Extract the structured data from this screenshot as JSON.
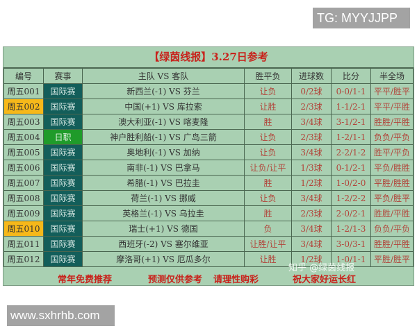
{
  "watermarks": {
    "tg": "TG: MYYJJPP",
    "site": "www.sxhrhb.com",
    "zhihu": "知乎 @绿茵线报"
  },
  "title": "【绿茵线报】3.27日参考",
  "headers": [
    "编号",
    "赛事",
    "主队 VS 客队",
    "胜平负",
    "进球数",
    "比分",
    "半全场"
  ],
  "colors": {
    "highlight": "#f6b81a",
    "league": "#135e5a",
    "league_alt": "#1f9b2a",
    "accent": "#c8231c"
  },
  "rows": [
    {
      "id": "周五001",
      "league": "国际赛",
      "teams": "新西兰(-1) VS 芬兰",
      "result": "让负",
      "goals": "0/2球",
      "score": "0-0/1-1",
      "htft": "平平/胜平",
      "highlight": false
    },
    {
      "id": "周五002",
      "league": "国际赛",
      "teams": "中国(+1) VS 库拉索",
      "result": "让胜",
      "goals": "2/3球",
      "score": "1-1/2-1",
      "htft": "平平/平胜",
      "highlight": true
    },
    {
      "id": "周五003",
      "league": "国际赛",
      "teams": "澳大利亚(-1) VS 喀麦隆",
      "result": "胜",
      "goals": "3/4球",
      "score": "3-1/2-1",
      "htft": "胜胜/平胜",
      "highlight": false
    },
    {
      "id": "周五004",
      "league": "日职",
      "teams": "神户胜利船(-1) VS 广岛三箭",
      "result": "让负",
      "goals": "2/3球",
      "score": "1-2/1-1",
      "htft": "负负/平负",
      "highlight": false
    },
    {
      "id": "周五005",
      "league": "国际赛",
      "teams": "奥地利(-1) VS 加纳",
      "result": "让负",
      "goals": "3/4球",
      "score": "2-2/1-2",
      "htft": "胜平/平负",
      "highlight": false
    },
    {
      "id": "周五006",
      "league": "国际赛",
      "teams": "南非(-1) VS 巴拿马",
      "result": "让负/让平",
      "goals": "1/3球",
      "score": "0-1/2-1",
      "htft": "平负/胜胜",
      "highlight": false
    },
    {
      "id": "周五007",
      "league": "国际赛",
      "teams": "希腊(-1) VS 巴拉圭",
      "result": "胜",
      "goals": "1/2球",
      "score": "1-0/2-0",
      "htft": "平胜/胜胜",
      "highlight": false
    },
    {
      "id": "周五008",
      "league": "国际赛",
      "teams": "荷兰(-1) VS 挪威",
      "result": "让负",
      "goals": "3/4球",
      "score": "1-2/2-2",
      "htft": "平负/胜平",
      "highlight": false
    },
    {
      "id": "周五009",
      "league": "国际赛",
      "teams": "英格兰(-1) VS 乌拉圭",
      "result": "胜",
      "goals": "2/3球",
      "score": "2-0/2-1",
      "htft": "胜胜/平胜",
      "highlight": false
    },
    {
      "id": "周五010",
      "league": "国际赛",
      "teams": "瑞士(+1) VS 德国",
      "result": "负",
      "goals": "3/4球",
      "score": "1-2/1-3",
      "htft": "负负/平负",
      "highlight": true
    },
    {
      "id": "周五011",
      "league": "国际赛",
      "teams": "西班牙(-2) VS 塞尔维亚",
      "result": "让胜/让平",
      "goals": "3/4球",
      "score": "3-0/3-1",
      "htft": "胜胜/平胜",
      "highlight": false
    },
    {
      "id": "周五012",
      "league": "国际赛",
      "teams": "摩洛哥(+1) VS 厄瓜多尔",
      "result": "让胜",
      "goals": "1/2球",
      "score": "1-0/1-1",
      "htft": "平胜/胜平",
      "highlight": false
    }
  ],
  "footer": [
    "常年免费推荐",
    "预测仅供参考",
    "请理性购彩",
    "祝大家好运长红"
  ]
}
